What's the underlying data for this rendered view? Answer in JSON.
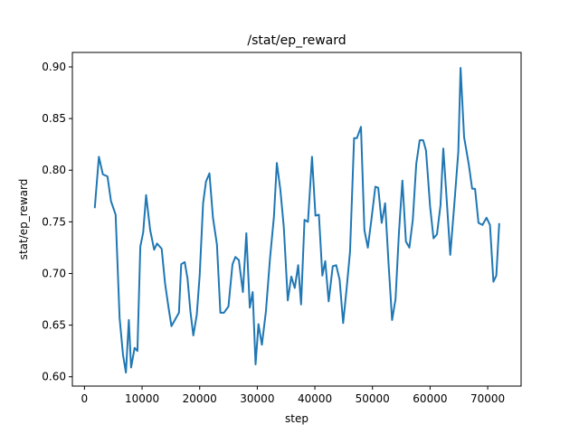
{
  "chart_data": {
    "type": "line",
    "title": "/stat/ep_reward",
    "xlabel": "step",
    "ylabel": "stat/ep_reward",
    "xlim": [
      -2100,
      75800
    ],
    "ylim": [
      0.591,
      0.914
    ],
    "xticks": [
      0,
      10000,
      20000,
      30000,
      40000,
      50000,
      60000,
      70000
    ],
    "yticks": [
      0.6,
      0.65,
      0.7,
      0.75,
      0.8,
      0.85,
      0.9
    ],
    "ytick_labels": [
      "0.60",
      "0.65",
      "0.70",
      "0.75",
      "0.80",
      "0.85",
      "0.90"
    ],
    "grid": false,
    "line_color": "#1f77b4",
    "series": [
      {
        "x": [
          1800,
          2500,
          3200,
          4000,
          4600,
          5400,
          6100,
          6700,
          7200,
          7700,
          8100,
          8700,
          9200,
          9700,
          10200,
          10700,
          11400,
          12100,
          12600,
          13400,
          14000,
          14600,
          15100,
          15700,
          16400,
          16800,
          17400,
          17900,
          18400,
          18900,
          19500,
          20000,
          20600,
          21100,
          21700,
          22300,
          23000,
          23600,
          24200,
          25000,
          25700,
          26200,
          26800,
          27500,
          28100,
          28700,
          29200,
          29700,
          30200,
          30800,
          31500,
          32200,
          32900,
          33400,
          34000,
          34600,
          35300,
          35900,
          36500,
          37100,
          37600,
          38200,
          38800,
          39500,
          40100,
          40700,
          41300,
          41800,
          42400,
          43100,
          43700,
          44300,
          44900,
          45500,
          46100,
          46800,
          47300,
          48000,
          48600,
          49200,
          49800,
          50500,
          51000,
          51600,
          52200,
          52800,
          53400,
          54000,
          54600,
          55200,
          55800,
          56400,
          57000,
          57600,
          58200,
          58800,
          59300,
          60000,
          60600,
          61200,
          61800,
          62300,
          62800,
          63500,
          64200,
          64900,
          65300,
          65900,
          66700,
          67300,
          67800,
          68400,
          69100,
          69800,
          70400,
          71000,
          71500,
          72000
        ],
        "y": [
          0.764,
          0.813,
          0.796,
          0.794,
          0.77,
          0.757,
          0.657,
          0.621,
          0.604,
          0.655,
          0.609,
          0.628,
          0.625,
          0.726,
          0.74,
          0.776,
          0.742,
          0.723,
          0.729,
          0.724,
          0.69,
          0.667,
          0.649,
          0.655,
          0.662,
          0.709,
          0.711,
          0.695,
          0.663,
          0.64,
          0.66,
          0.698,
          0.768,
          0.789,
          0.797,
          0.754,
          0.728,
          0.662,
          0.662,
          0.668,
          0.709,
          0.716,
          0.713,
          0.682,
          0.739,
          0.667,
          0.682,
          0.612,
          0.651,
          0.631,
          0.663,
          0.714,
          0.755,
          0.807,
          0.781,
          0.745,
          0.674,
          0.697,
          0.686,
          0.708,
          0.67,
          0.752,
          0.75,
          0.813,
          0.756,
          0.757,
          0.698,
          0.712,
          0.673,
          0.707,
          0.708,
          0.694,
          0.652,
          0.685,
          0.721,
          0.831,
          0.831,
          0.842,
          0.742,
          0.725,
          0.752,
          0.784,
          0.783,
          0.749,
          0.768,
          0.708,
          0.655,
          0.675,
          0.74,
          0.79,
          0.731,
          0.725,
          0.752,
          0.806,
          0.829,
          0.829,
          0.819,
          0.765,
          0.734,
          0.738,
          0.766,
          0.821,
          0.779,
          0.718,
          0.766,
          0.818,
          0.899,
          0.832,
          0.806,
          0.782,
          0.782,
          0.749,
          0.747,
          0.754,
          0.747,
          0.692,
          0.698,
          0.748
        ]
      }
    ]
  }
}
